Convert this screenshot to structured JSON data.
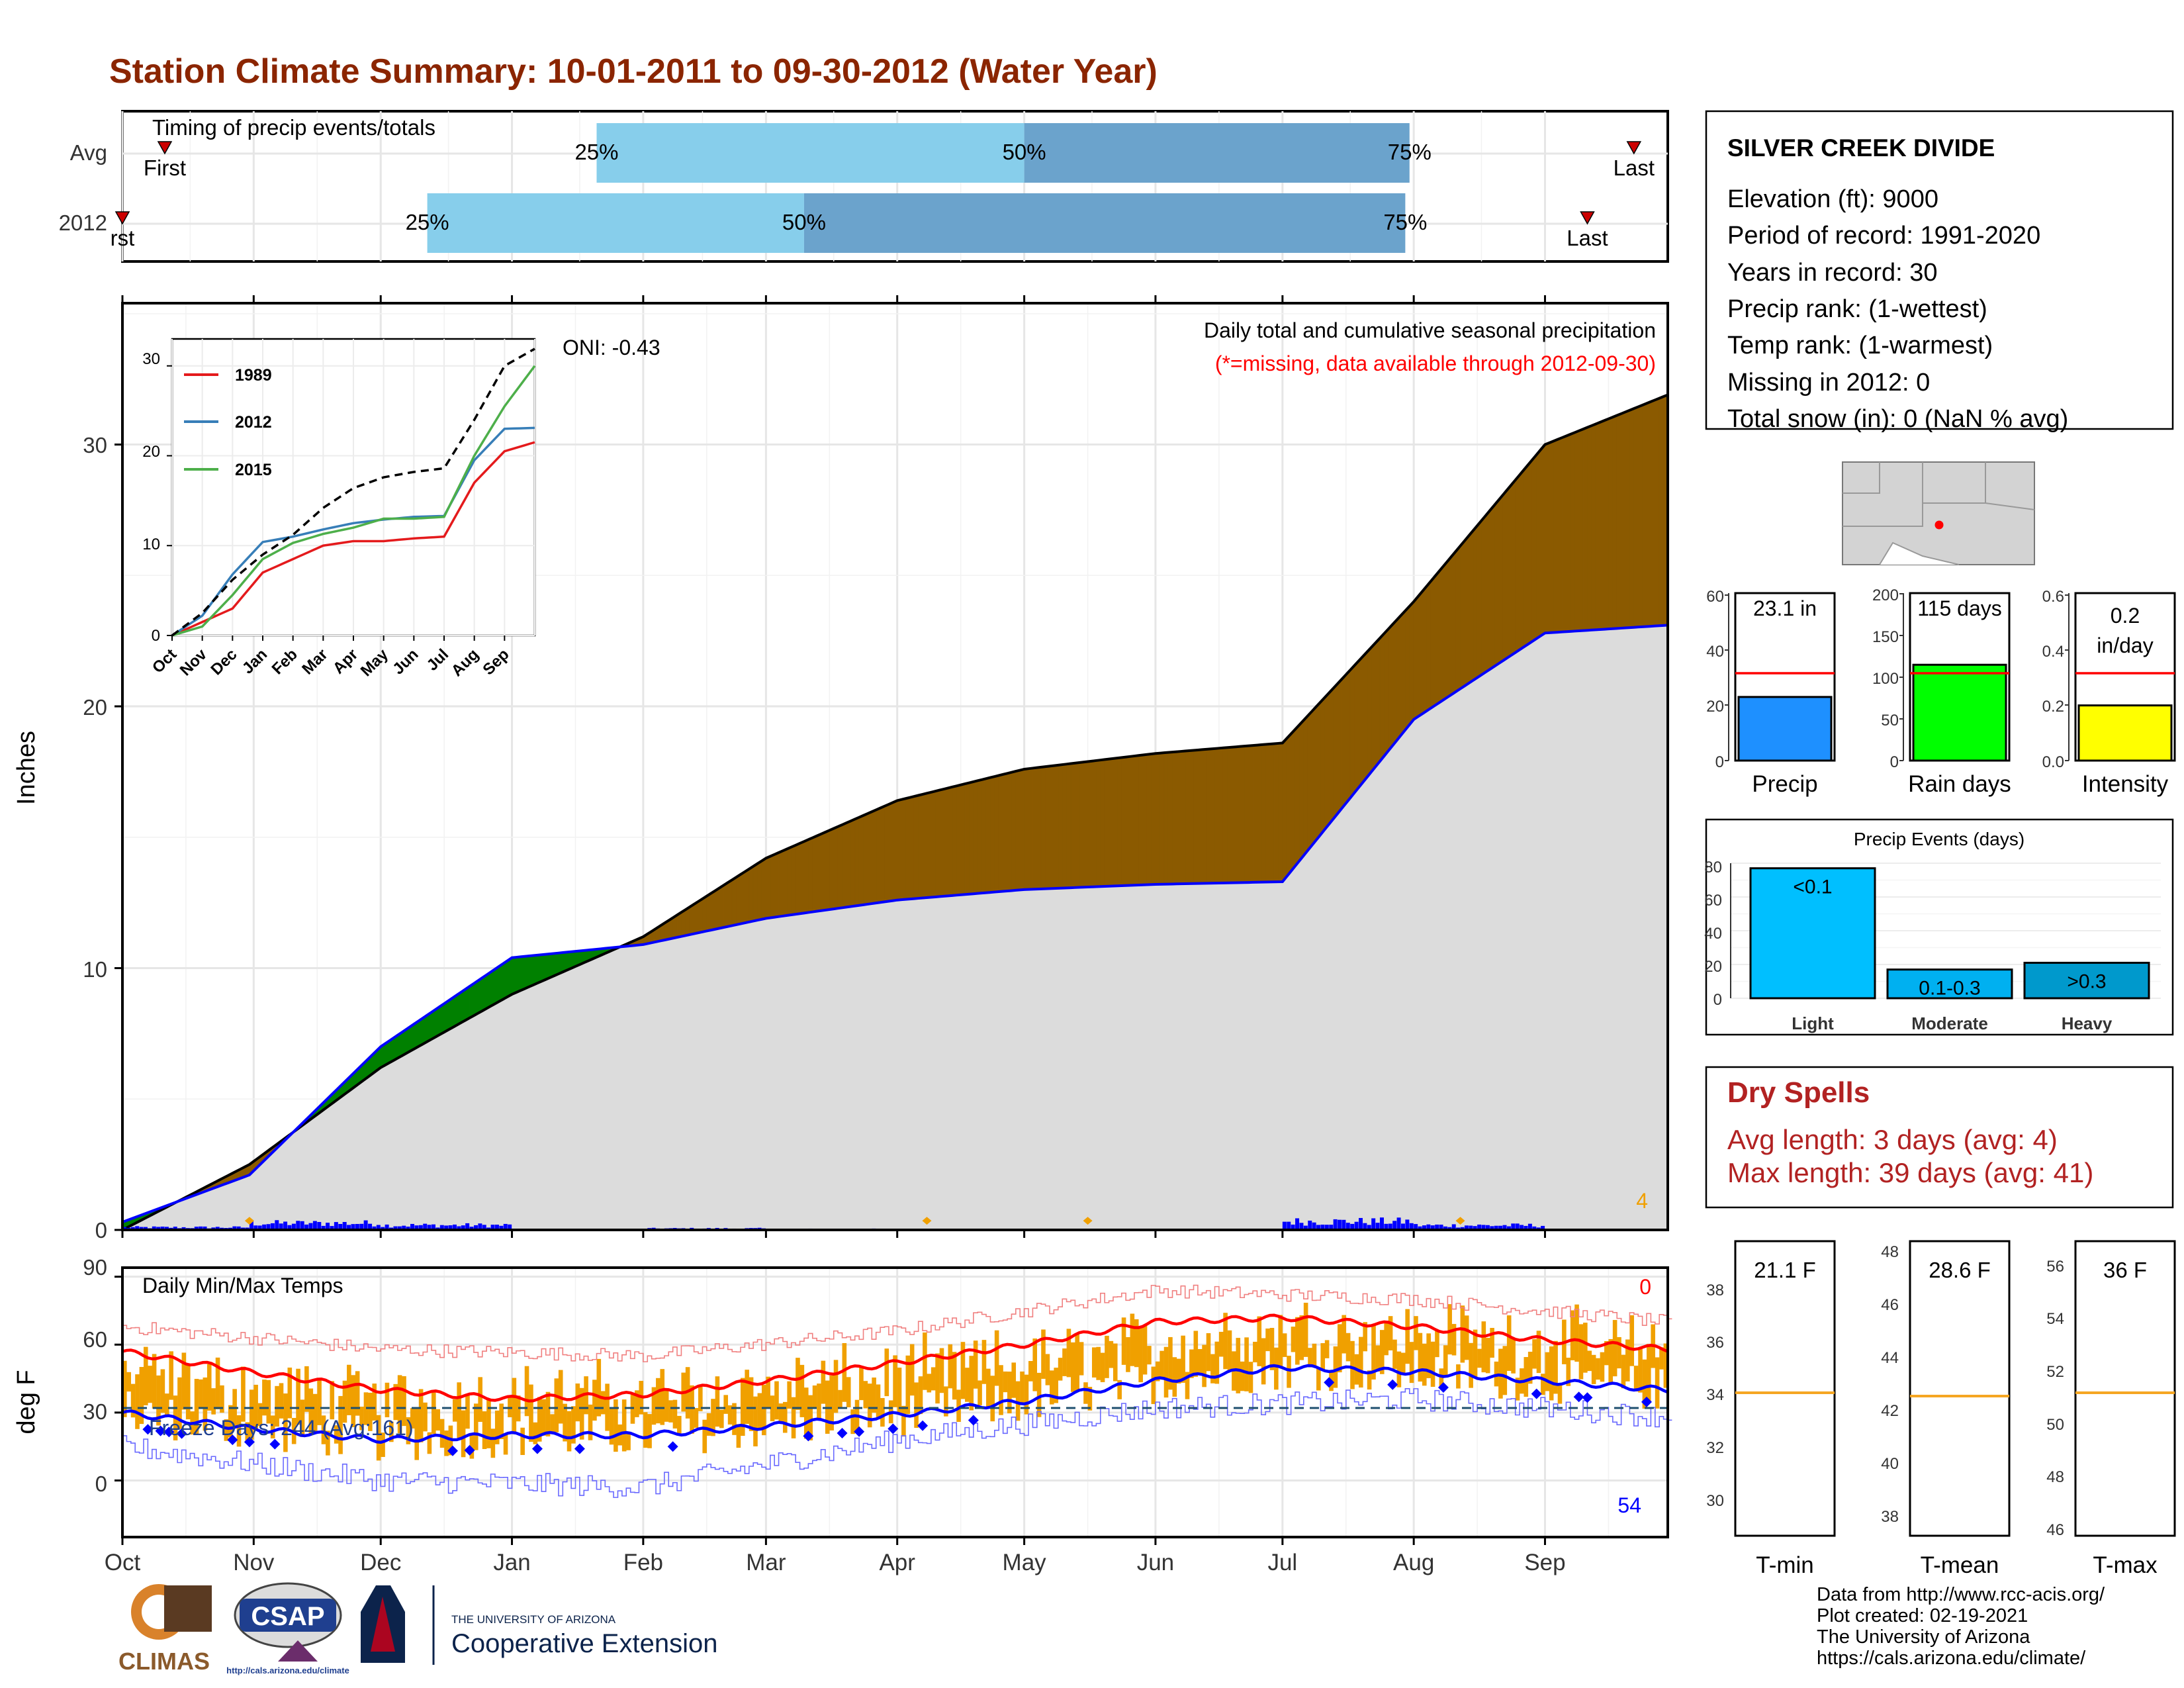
{
  "title": "Station Climate Summary: 10-01-2011 to 09-30-2012 (Water Year)",
  "colors": {
    "title": "#8b2500",
    "light_blue": "#87ceeb",
    "steel_blue": "#6ba3cc",
    "brown": "#8b5a00",
    "green": "#008000",
    "cum_fill": "#dcdcdc",
    "blue": "#0000ff",
    "red": "#ff0000",
    "orange": "#f0a000",
    "dry_spells": "#b22222"
  },
  "timing": {
    "label": "Timing of precip events/totals",
    "rows": [
      {
        "name": "Avg",
        "first_label": "First",
        "last_label": "Last",
        "p25_label": "25%",
        "p50_label": "50%",
        "p75_label": "75%",
        "first_day": 10,
        "p25_day": 112,
        "p50_day": 213,
        "p75_day": 304,
        "last_day": 357
      },
      {
        "name": "2012",
        "first_label": "rst",
        "last_label": "Last",
        "p25_label": "25%",
        "p50_label": "50%",
        "p75_label": "75%",
        "first_day": 0,
        "p25_day": 72,
        "p50_day": 161,
        "p75_day": 303,
        "last_day": 346
      }
    ]
  },
  "precip_panel": {
    "ylabel": "Inches",
    "header": "Daily total and cumulative seasonal precipitation",
    "missing_note": "(*=missing, data available through 2012-09-30)",
    "oni": "ONI: -0.43",
    "corner_count": "4",
    "y_ticks": [
      "0",
      "10",
      "20",
      "30"
    ]
  },
  "inset": {
    "y_ticks": [
      "0",
      "10",
      "20",
      "30"
    ],
    "x_ticks": [
      "Oct",
      "Nov",
      "Dec",
      "Jan",
      "Feb",
      "Mar",
      "Apr",
      "May",
      "Jun",
      "Jul",
      "Aug",
      "Sep"
    ],
    "legend": [
      "1989",
      "2012",
      "2015"
    ]
  },
  "temp_panel": {
    "ylabel": "deg F",
    "label": "Daily Min/Max Temps",
    "freeze_days": "Freeze Days: 244 (Avg:161)",
    "top_count": "0",
    "bottom_count": "54",
    "y_ticks": [
      "0",
      "30",
      "60",
      "90"
    ]
  },
  "month_labels": [
    "Oct",
    "Nov",
    "Dec",
    "Jan",
    "Feb",
    "Mar",
    "Apr",
    "May",
    "Jun",
    "Jul",
    "Aug",
    "Sep"
  ],
  "station": {
    "name": "SILVER CREEK DIVIDE",
    "lines": [
      "Elevation (ft): 9000",
      "Period of record: 1991-2020",
      "Years in record: 30",
      "Precip rank:  (1-wettest)",
      "Temp rank:  (1-warmest)",
      "Missing in 2012: 0",
      "Total snow (in): 0 (NaN % avg)"
    ]
  },
  "minibars": [
    {
      "label": "Precip",
      "value_label": "23.1 in",
      "y_ticks": [
        "0",
        "20",
        "40",
        "60"
      ]
    },
    {
      "label": "Rain days",
      "value_label": "115 days",
      "y_ticks": [
        "0",
        "50",
        "100",
        "150",
        "200"
      ]
    },
    {
      "label": "Intensity",
      "value_label_1": "0.2",
      "value_label_2": "in/day",
      "y_ticks": [
        "0.0",
        "0.2",
        "0.4",
        "0.6"
      ]
    }
  ],
  "events": {
    "title": "Precip Events (days)",
    "y_ticks": [
      "0",
      "20",
      "40",
      "60",
      "80"
    ],
    "categories": [
      "Light",
      "Moderate",
      "Heavy"
    ],
    "bar_labels": [
      "<0.1",
      "0.1-0.3",
      ">0.3"
    ]
  },
  "dry_spells": {
    "title": "Dry Spells",
    "avg": "Avg length: 3 days (avg: 4)",
    "max": "Max length: 39 days (avg: 41)"
  },
  "temp_boxes": [
    {
      "label": "T-min",
      "value_label": "21.1 F",
      "y_ticks": [
        "30",
        "32",
        "34",
        "36",
        "38"
      ]
    },
    {
      "label": "T-mean",
      "value_label": "28.6 F",
      "y_ticks": [
        "38",
        "40",
        "42",
        "44",
        "46",
        "48"
      ]
    },
    {
      "label": "T-max",
      "value_label": "36 F",
      "y_ticks": [
        "46",
        "48",
        "50",
        "52",
        "54",
        "56"
      ]
    }
  ],
  "credits": [
    "Data from http://www.rcc-acis.org/",
    "Plot created: 02-19-2021",
    "The University of Arizona",
    "https://cals.arizona.edu/climate/"
  ],
  "logos": {
    "climas": "CLIMAS",
    "csap": "CSAP",
    "csap_url": "http://cals.arizona.edu/climate",
    "ua_small": "THE UNIVERSITY OF ARIZONA",
    "ua_large": "Cooperative Extension"
  },
  "chart_data": [
    {
      "type": "area",
      "title": "Daily total and cumulative seasonal precipitation",
      "ylabel": "Inches",
      "ylim": [
        0,
        36
      ],
      "x_months": [
        "Oct",
        "Nov",
        "Dec",
        "Jan",
        "Feb",
        "Mar",
        "Apr",
        "May",
        "Jun",
        "Jul",
        "Aug",
        "Sep"
      ],
      "series": [
        {
          "name": "avg_cumulative",
          "days": [
            0,
            30,
            61,
            92,
            123,
            152,
            183,
            213,
            244,
            274,
            305,
            336,
            365
          ],
          "values": [
            0,
            2.5,
            6.2,
            9.0,
            11.2,
            14.2,
            16.4,
            17.6,
            18.2,
            18.6,
            24.0,
            30.0,
            31.9
          ]
        },
        {
          "name": "2012_cumulative",
          "days": [
            0,
            30,
            61,
            92,
            123,
            152,
            183,
            213,
            244,
            274,
            305,
            336,
            365
          ],
          "values": [
            0.3,
            2.1,
            7.0,
            10.4,
            10.9,
            11.9,
            12.6,
            13.0,
            13.2,
            13.3,
            19.5,
            22.8,
            23.1
          ]
        }
      ]
    },
    {
      "type": "line",
      "title": "",
      "ylim": [
        0,
        33
      ],
      "x": [
        "Oct",
        "Nov",
        "Dec",
        "Jan",
        "Feb",
        "Mar",
        "Apr",
        "May",
        "Jun",
        "Jul",
        "Aug",
        "Sep",
        "Oct"
      ],
      "series": [
        {
          "name": "1989",
          "values": [
            0,
            1.5,
            3.0,
            7.0,
            8.5,
            10.0,
            10.5,
            10.5,
            10.8,
            11.0,
            17.0,
            20.5,
            21.5
          ]
        },
        {
          "name": "2012",
          "values": [
            0,
            2.2,
            6.8,
            10.4,
            11.0,
            11.8,
            12.5,
            12.9,
            13.2,
            13.3,
            19.5,
            23.0,
            23.1
          ]
        },
        {
          "name": "2015",
          "values": [
            0,
            1.0,
            4.5,
            8.5,
            10.3,
            11.3,
            12.0,
            13.0,
            13.0,
            13.2,
            20.0,
            25.5,
            30.0
          ]
        },
        {
          "name": "avg",
          "values": [
            0,
            2.5,
            6.2,
            9.0,
            11.2,
            14.2,
            16.4,
            17.6,
            18.2,
            18.6,
            24.0,
            30.0,
            31.9
          ]
        }
      ]
    },
    {
      "type": "line",
      "title": "Daily Min/Max Temps",
      "ylabel": "deg F",
      "ylim": [
        -20,
        92
      ],
      "series": [
        {
          "name": "avg_max",
          "days": [
            0,
            30,
            61,
            92,
            123,
            152,
            183,
            213,
            244,
            274,
            305,
            336,
            365
          ],
          "values": [
            57,
            48,
            40,
            36,
            38,
            44,
            52,
            60,
            70,
            72,
            68,
            62,
            58
          ]
        },
        {
          "name": "avg_min",
          "days": [
            0,
            30,
            61,
            92,
            123,
            152,
            183,
            213,
            244,
            274,
            305,
            336,
            365
          ],
          "values": [
            30,
            23,
            18,
            20,
            20,
            24,
            29,
            35,
            44,
            50,
            48,
            44,
            40
          ]
        },
        {
          "name": "record_max",
          "days": [
            0,
            61,
            123,
            183,
            244,
            305,
            365
          ],
          "values": [
            68,
            58,
            55,
            66,
            84,
            80,
            70
          ]
        },
        {
          "name": "record_min",
          "days": [
            0,
            61,
            123,
            183,
            244,
            305,
            365
          ],
          "values": [
            15,
            0,
            -3,
            18,
            32,
            36,
            28
          ]
        },
        {
          "name": "freezing",
          "values": [
            32
          ]
        }
      ]
    },
    {
      "type": "bar",
      "title": "Precip Events (days)",
      "categories": [
        "Light",
        "Moderate",
        "Heavy"
      ],
      "values": [
        77,
        17,
        21
      ],
      "ylim": [
        0,
        80
      ]
    }
  ]
}
